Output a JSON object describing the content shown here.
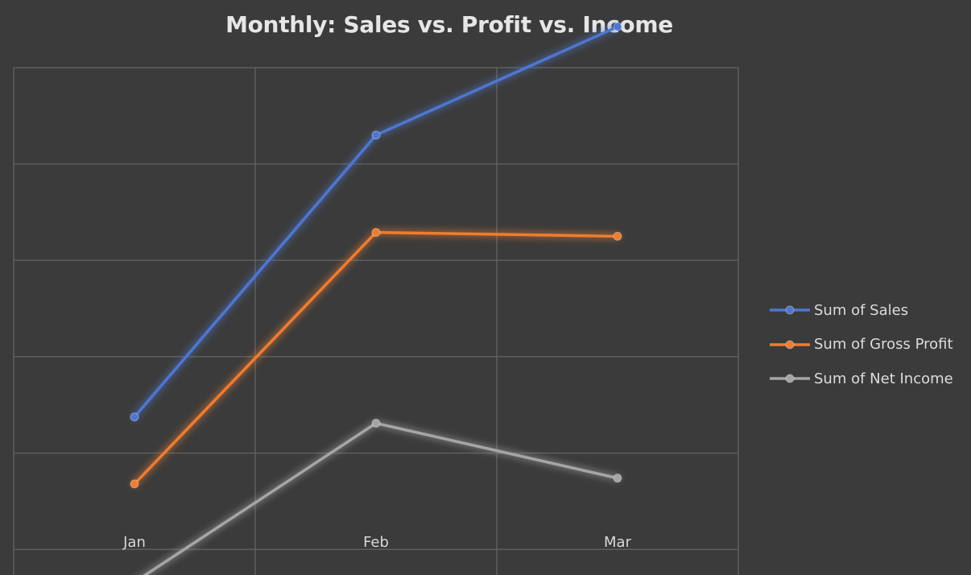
{
  "chart_data": {
    "type": "line",
    "title": "Monthly: Sales vs. Profit vs. Income",
    "categories": [
      "Jan",
      "Feb",
      "Mar"
    ],
    "series": [
      {
        "name": "Sum of Sales",
        "color": "#4f76cf",
        "values": [
          1.375,
          4.3,
          5.425
        ]
      },
      {
        "name": "Sum of Gross Profit",
        "color": "#ed7d31",
        "values": [
          0.68,
          3.29,
          3.25
        ]
      },
      {
        "name": "Sum of Net Income",
        "color": "#a5a5a5",
        "values": [
          -0.34,
          1.31,
          0.74
        ]
      }
    ],
    "ylim": [
      -0.6,
      5.0
    ],
    "y_tick_labels_shown": false,
    "grid": true,
    "legend_position": "right",
    "markers": true
  }
}
